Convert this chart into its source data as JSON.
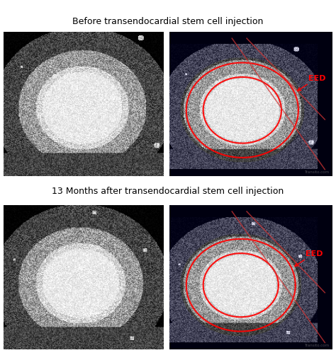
{
  "title_top": "Before transendocardial stem cell injection",
  "title_bottom": "13 Months after transendocardial stem cell injection",
  "eed_label": "EED",
  "background_color": "#ffffff",
  "title_fontsize": 9,
  "eed_fontsize": 8,
  "figure_width": 4.74,
  "figure_height": 5.1,
  "dpi": 100
}
